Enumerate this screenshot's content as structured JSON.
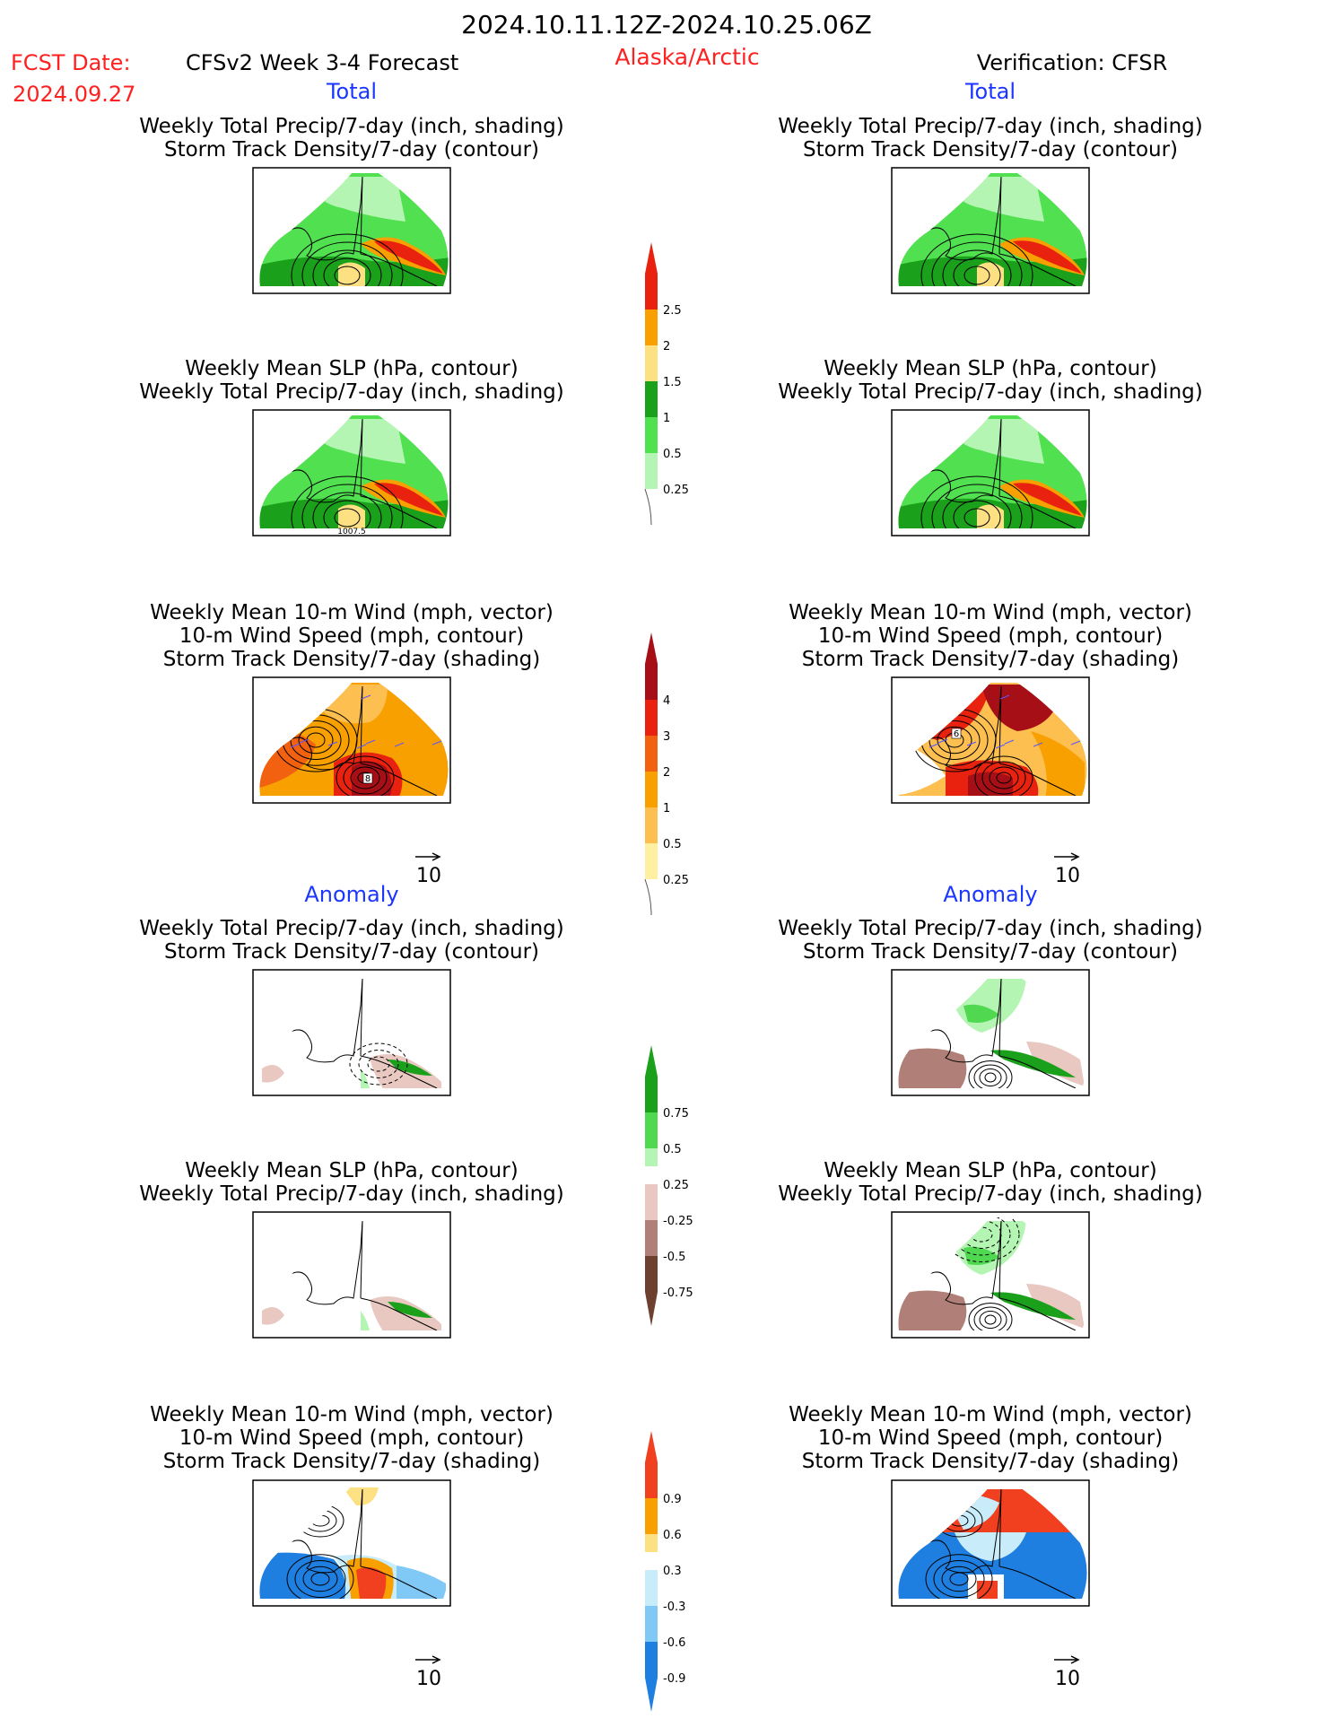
{
  "header": {
    "date_range": "2024.10.11.12Z-2024.10.25.06Z",
    "fcst_label": "FCST Date:",
    "fcst_date": "2024.09.27",
    "model": "CFSv2 Week 3-4 Forecast",
    "region": "Alaska/Arctic",
    "verification": "Verification: CFSR"
  },
  "sections": {
    "total": "Total",
    "anomaly": "Anomaly"
  },
  "panel_titles": {
    "precip_storm": [
      "Weekly Total Precip/7-day (inch, shading)",
      "Storm Track Density/7-day (contour)"
    ],
    "slp_precip": [
      "Weekly Mean SLP (hPa, contour)",
      "Weekly Total Precip/7-day (inch, shading)"
    ],
    "wind_storm": [
      "Weekly Mean 10-m Wind (mph, vector)",
      "10-m Wind Speed (mph, contour)",
      "Storm Track Density/7-day (shading)"
    ]
  },
  "map_labels": {
    "slp_contour_value": "1007.5",
    "storm_total_left_label": "8",
    "storm_total_right_label": "6"
  },
  "vector_reference": "10",
  "colorbars": {
    "precip_total": {
      "labels": [
        "2.5",
        "2",
        "1.5",
        "1",
        "0.5",
        "0.25"
      ],
      "colors": [
        "#e8220f",
        "#f7a000",
        "#fde082",
        "#1aa01a",
        "#50e050",
        "#b4f5b4"
      ]
    },
    "storm_total": {
      "labels": [
        "4",
        "3",
        "2",
        "1",
        "0.5",
        "0.25"
      ],
      "colors": [
        "#a50f15",
        "#e8220f",
        "#f2610f",
        "#f7a000",
        "#fcbf50",
        "#fef0a0"
      ]
    },
    "precip_anom": {
      "labels": [
        "0.75",
        "0.5",
        "0.25",
        "-0.25",
        "-0.5",
        "-0.75"
      ],
      "colors": [
        "#1aa01a",
        "#50d850",
        "#b4f5b4",
        "#e8c8c0",
        "#b08078",
        "#6e4030"
      ]
    },
    "storm_anom": {
      "labels": [
        "0.9",
        "0.6",
        "0.3",
        "-0.3",
        "-0.6",
        "-0.9"
      ],
      "colors": [
        "#f0401f",
        "#f7a000",
        "#fde082",
        "#c8ecfa",
        "#80c8f5",
        "#1e7fe0"
      ]
    }
  }
}
